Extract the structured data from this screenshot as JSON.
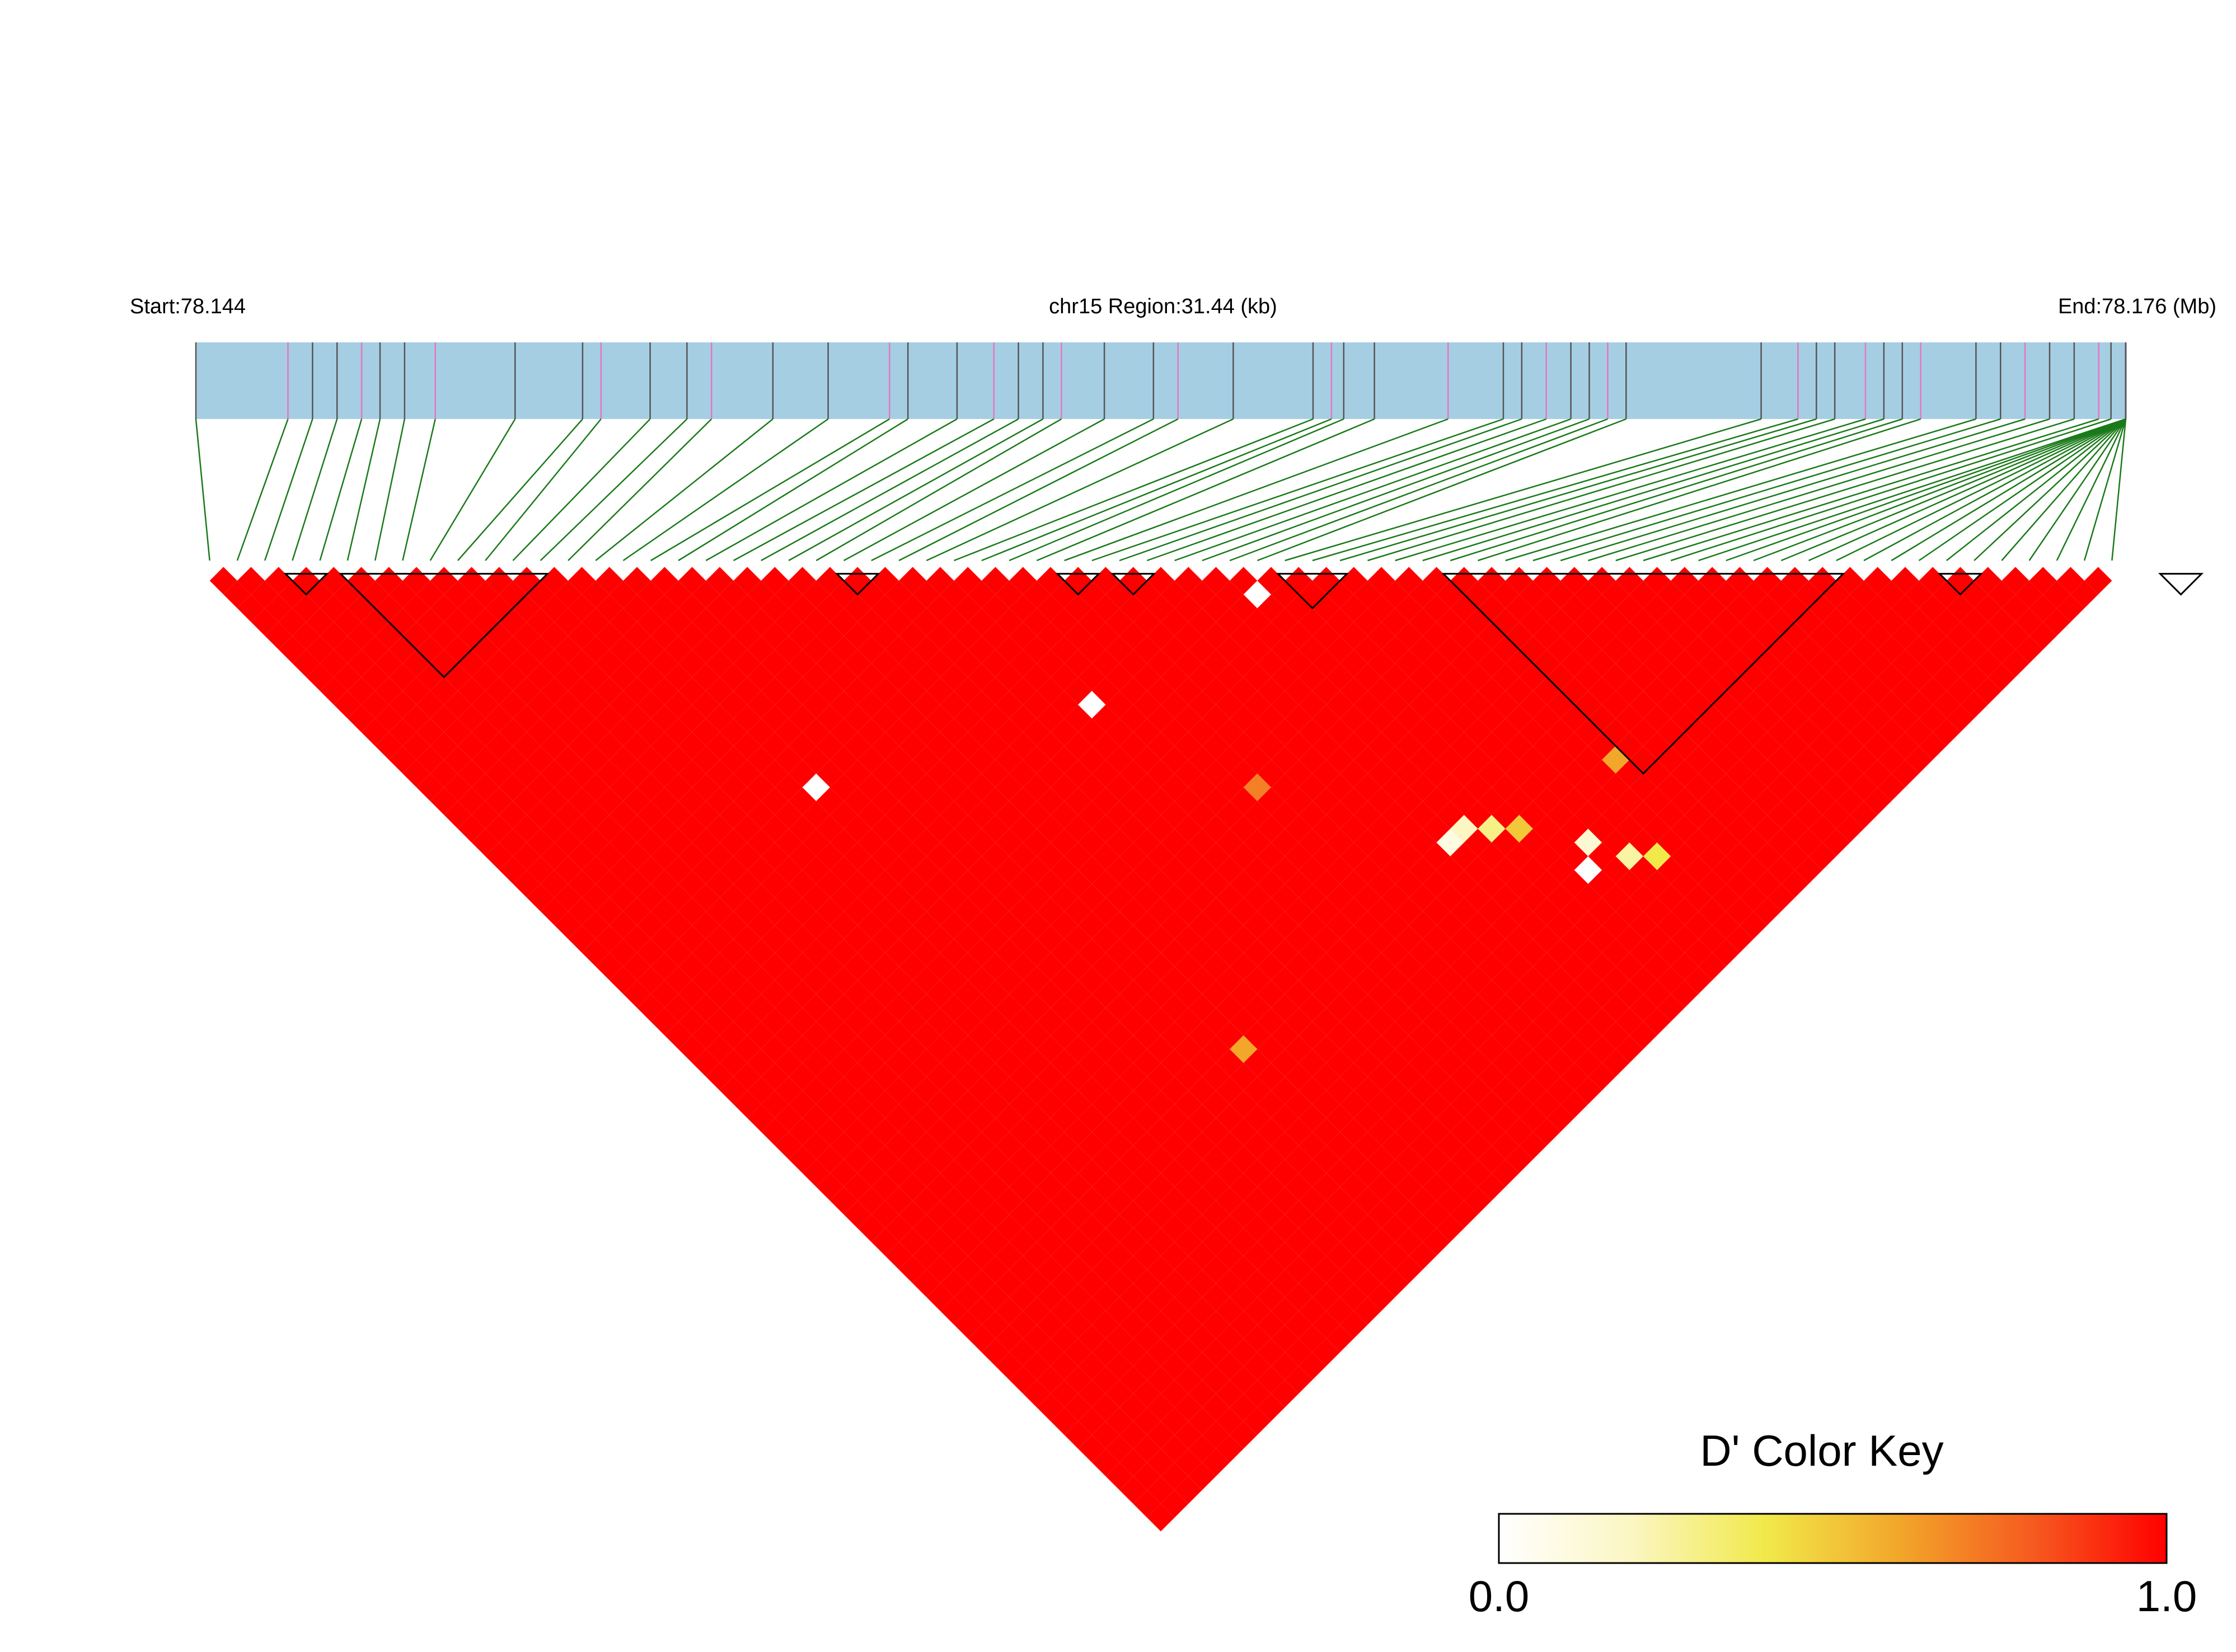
{
  "header": {
    "start_label": "Start:78.144",
    "region_label": "chr15 Region:31.44 (kb)",
    "end_label": "End:78.176 (Mb)"
  },
  "legend": {
    "title": "D' Color Key",
    "min_label": "0.0",
    "max_label": "1.0",
    "stops": [
      "#ffffff",
      "#fbf6c2",
      "#f1e94a",
      "#f2a62a",
      "#f65a1f",
      "#ff0000"
    ]
  },
  "colors": {
    "track": "#a6cee3",
    "variant_dark": "#555555",
    "variant_pink": "#e377c2",
    "connector": "#1a7a1a",
    "high_ld": "#ff0000"
  },
  "chart_data": {
    "type": "heatmap",
    "chromosome": "chr15",
    "start_mb": 78.144,
    "end_mb": 78.176,
    "region_kb": 31.44,
    "n_snps": 70,
    "value_range": [
      0,
      1
    ],
    "default_dprime": 1.0,
    "snp_positions_kb": [
      0,
      1.5,
      1.9,
      2.3,
      2.7,
      3.0,
      3.4,
      3.9,
      5.2,
      6.3,
      6.6,
      7.4,
      8.0,
      8.4,
      9.4,
      10.3,
      11.3,
      11.6,
      12.4,
      13.0,
      13.4,
      13.8,
      14.1,
      14.8,
      15.6,
      16.0,
      16.9,
      18.2,
      18.5,
      18.7,
      19.2,
      20.4,
      21.3,
      21.6,
      22.0,
      22.4,
      22.7,
      23.0,
      23.3,
      25.5,
      26.1,
      26.4,
      26.7,
      27.2,
      27.5,
      27.8,
      28.1,
      29.0,
      29.4,
      29.8,
      30.2,
      30.6,
      31.0,
      31.2,
      31.44,
      31.44,
      31.44,
      31.44,
      31.44,
      31.44,
      31.44,
      31.44,
      31.44,
      31.44,
      31.44,
      31.44,
      31.44,
      31.44,
      31.44,
      31.44
    ],
    "haplotype_blocks": [
      [
        3,
        4
      ],
      [
        5,
        12
      ],
      [
        23,
        24
      ],
      [
        31,
        32
      ],
      [
        33,
        34
      ],
      [
        39,
        41
      ],
      [
        45,
        59
      ],
      [
        63,
        64
      ],
      [
        71,
        72
      ]
    ],
    "dprime_pairs": [
      {
        "i": 36,
        "j": 55,
        "d": 0.2
      },
      {
        "i": 35,
        "j": 55,
        "d": 0.1
      },
      {
        "i": 37,
        "j": 56,
        "d": 0.3
      },
      {
        "i": 38,
        "j": 57,
        "d": 0.5
      },
      {
        "i": 40,
        "j": 60,
        "d": 0.15
      },
      {
        "i": 41,
        "j": 62,
        "d": 0.25
      },
      {
        "i": 39,
        "j": 61,
        "d": 0.0
      },
      {
        "i": 42,
        "j": 63,
        "d": 0.4
      },
      {
        "i": 14,
        "j": 30,
        "d": 0.0
      },
      {
        "i": 27,
        "j": 37,
        "d": 0.0
      },
      {
        "i": 37,
        "j": 39,
        "d": 0.0
      },
      {
        "i": 20,
        "j": 55,
        "d": 0.6
      },
      {
        "i": 30,
        "j": 46,
        "d": 0.7
      },
      {
        "i": 44,
        "j": 58,
        "d": 0.6
      }
    ],
    "blocks_note": "",
    "title": "",
    "xlabel": "",
    "ylabel": ""
  }
}
